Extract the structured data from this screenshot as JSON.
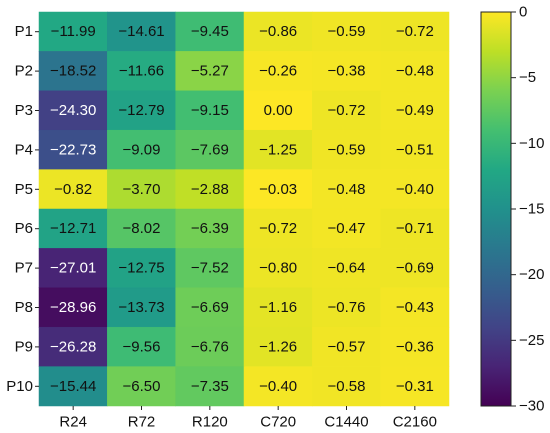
{
  "chart_data": {
    "type": "heatmap",
    "rows": [
      "P1",
      "P2",
      "P3",
      "P4",
      "P5",
      "P6",
      "P7",
      "P8",
      "P9",
      "P10"
    ],
    "columns": [
      "R24",
      "R72",
      "R120",
      "C720",
      "C1440",
      "C2160"
    ],
    "values": [
      [
        -11.99,
        -14.61,
        -9.45,
        -0.86,
        -0.59,
        -0.72
      ],
      [
        -18.52,
        -11.66,
        -5.27,
        -0.26,
        -0.38,
        -0.48
      ],
      [
        -24.3,
        -12.79,
        -9.15,
        0.0,
        -0.72,
        -0.49
      ],
      [
        -22.73,
        -9.09,
        -7.69,
        -1.25,
        -0.59,
        -0.51
      ],
      [
        -0.82,
        -3.7,
        -2.88,
        -0.03,
        -0.48,
        -0.4
      ],
      [
        -12.71,
        -8.02,
        -6.39,
        -0.72,
        -0.47,
        -0.71
      ],
      [
        -27.01,
        -12.75,
        -7.52,
        -0.8,
        -0.64,
        -0.69
      ],
      [
        -28.96,
        -13.73,
        -6.69,
        -1.16,
        -0.76,
        -0.43
      ],
      [
        -26.28,
        -9.56,
        -6.76,
        -1.26,
        -0.57,
        -0.36
      ],
      [
        -15.44,
        -6.5,
        -7.35,
        -0.4,
        -0.58,
        -0.31
      ]
    ],
    "value_labels": [
      [
        "−11.99",
        "−14.61",
        "−9.45",
        "−0.86",
        "−0.59",
        "−0.72"
      ],
      [
        "−18.52",
        "−11.66",
        "−5.27",
        "−0.26",
        "−0.38",
        "−0.48"
      ],
      [
        "−24.30",
        "−12.79",
        "−9.15",
        "0.00",
        "−0.72",
        "−0.49"
      ],
      [
        "−22.73",
        "−9.09",
        "−7.69",
        "−1.25",
        "−0.59",
        "−0.51"
      ],
      [
        "−0.82",
        "−3.70",
        "−2.88",
        "−0.03",
        "−0.48",
        "−0.40"
      ],
      [
        "−12.71",
        "−8.02",
        "−6.39",
        "−0.72",
        "−0.47",
        "−0.71"
      ],
      [
        "−27.01",
        "−12.75",
        "−7.52",
        "−0.80",
        "−0.64",
        "−0.69"
      ],
      [
        "−28.96",
        "−13.73",
        "−6.69",
        "−1.16",
        "−0.76",
        "−0.43"
      ],
      [
        "−26.28",
        "−9.56",
        "−6.76",
        "−1.26",
        "−0.57",
        "−0.36"
      ],
      [
        "−15.44",
        "−6.50",
        "−7.35",
        "−0.40",
        "−0.58",
        "−0.31"
      ]
    ],
    "colormap": "viridis",
    "vmin": -30,
    "vmax": 0,
    "colorbar": {
      "ticks": [
        0,
        -5,
        -10,
        -15,
        -20,
        -25,
        -30
      ],
      "tick_labels": [
        "0",
        "−5",
        "−10",
        "−15",
        "−20",
        "−25",
        "−30"
      ]
    },
    "title": "",
    "xlabel": "",
    "ylabel": ""
  }
}
